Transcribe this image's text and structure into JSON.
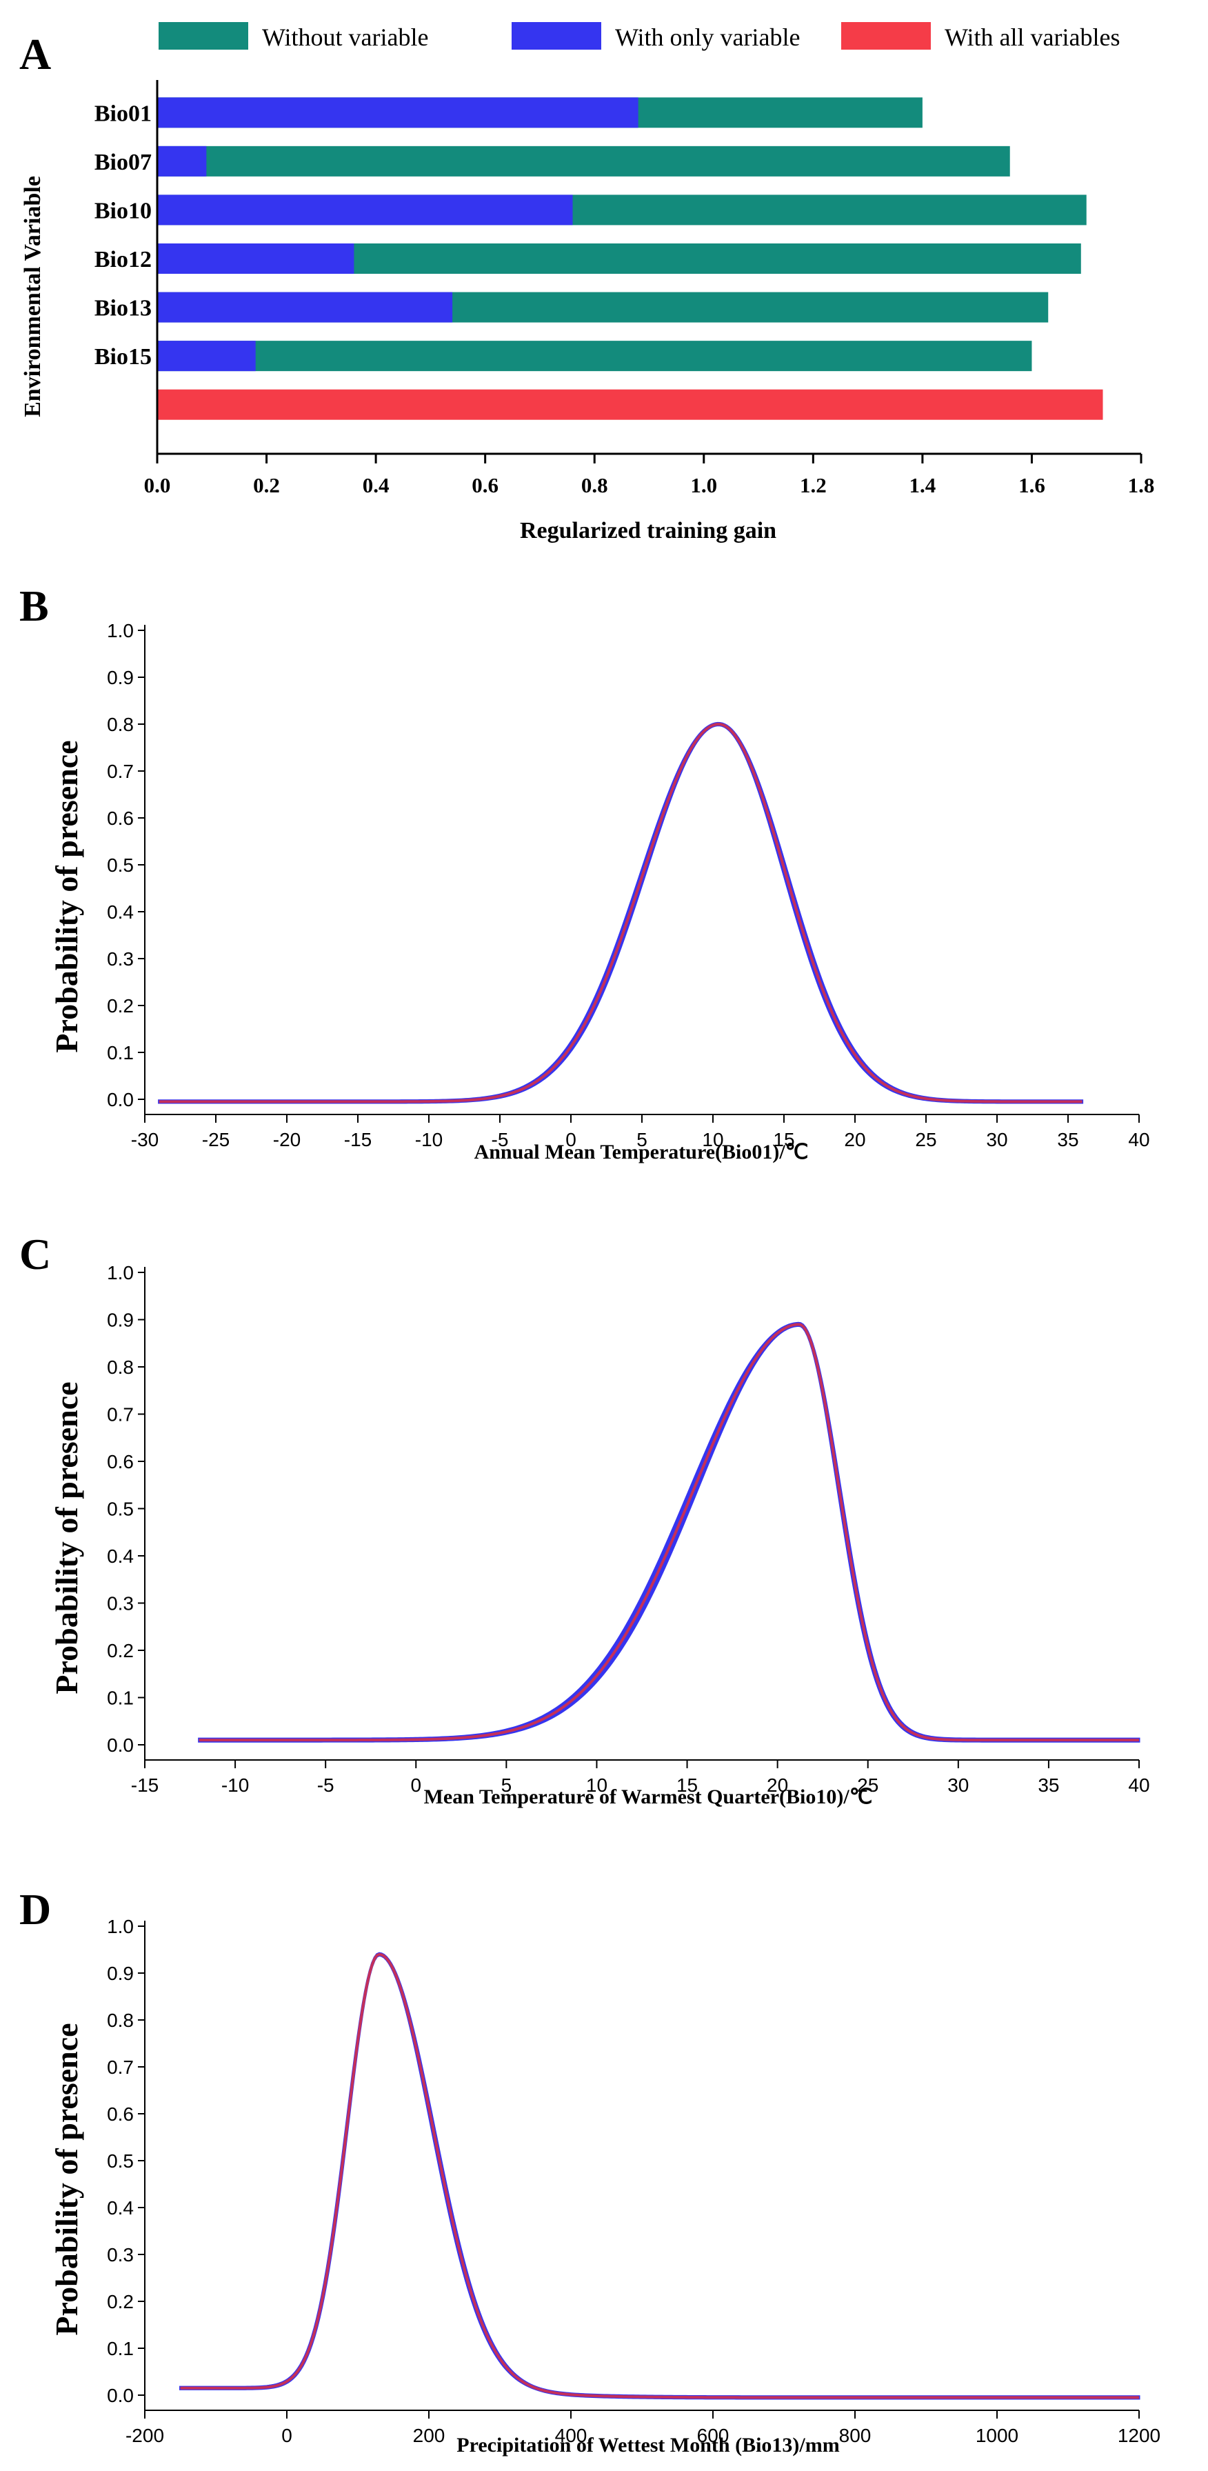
{
  "chart_data": [
    {
      "panel": "A",
      "type": "bar",
      "orientation": "horizontal",
      "categories": [
        "Bio01",
        "Bio07",
        "Bio10",
        "Bio12",
        "Bio13",
        "Bio15",
        ""
      ],
      "series": [
        {
          "name": "Without variable",
          "color": "#138b7c",
          "values": [
            1.4,
            1.56,
            1.7,
            1.69,
            1.63,
            1.6,
            null
          ]
        },
        {
          "name": "With only variable",
          "color": "#3535f0",
          "values": [
            0.88,
            0.09,
            0.76,
            0.36,
            0.54,
            0.18,
            null
          ]
        },
        {
          "name": "With all variables",
          "color": "#f53c48",
          "values": [
            null,
            null,
            null,
            null,
            null,
            null,
            1.73
          ]
        }
      ],
      "xlabel": "Regularized training gain",
      "ylabel": "Environmental Variable",
      "xlim": [
        0.0,
        1.8
      ],
      "xticks": [
        "0.0",
        "0.2",
        "0.4",
        "0.6",
        "0.8",
        "1.0",
        "1.2",
        "1.4",
        "1.6",
        "1.8"
      ],
      "legend": "top"
    },
    {
      "panel": "B",
      "type": "line",
      "xlabel": "Annual Mean Temperature(Bio01)/℃",
      "ylabel": "Probability of presence",
      "xlim": [
        -30,
        40
      ],
      "ylim": [
        0.0,
        1.0
      ],
      "xticks": [
        "-30",
        "-25",
        "-20",
        "-15",
        "-10",
        "-5",
        "0",
        "5",
        "10",
        "15",
        "20",
        "25",
        "30",
        "35",
        "40"
      ],
      "yticks": [
        "0.0",
        "0.1",
        "0.2",
        "0.3",
        "0.4",
        "0.5",
        "0.6",
        "0.7",
        "0.8",
        "0.9",
        "1.0"
      ],
      "curve": {
        "x_range": [
          -29,
          36
        ],
        "peak_x": 10.4,
        "peak_y": 0.8,
        "baseline": -0.005,
        "spread_left": 5.3,
        "spread_right": 4.7,
        "band_width": 0.012
      },
      "colors": {
        "band": "#3535f0",
        "mean": "#c4305a"
      }
    },
    {
      "panel": "C",
      "type": "line",
      "xlabel": "Mean Temperature of Warmest Quarter(Bio10)/℃",
      "ylabel": "Probability of presence",
      "xlim": [
        -15,
        40
      ],
      "ylim": [
        0.0,
        1.0
      ],
      "xticks": [
        "-15",
        "-10",
        "-5",
        "0",
        "5",
        "10",
        "15",
        "20",
        "25",
        "30",
        "35",
        "40"
      ],
      "yticks": [
        "0.0",
        "0.1",
        "0.2",
        "0.3",
        "0.4",
        "0.5",
        "0.6",
        "0.7",
        "0.8",
        "0.9",
        "1.0"
      ],
      "curve": {
        "x_range": [
          -12,
          40
        ],
        "peak_x": 21.2,
        "peak_y": 0.89,
        "baseline": 0.01,
        "spread_left": 5.8,
        "spread_right": 2.2,
        "band_width": 0.015
      },
      "colors": {
        "band": "#3535f0",
        "mean": "#c4305a"
      }
    },
    {
      "panel": "D",
      "type": "line",
      "xlabel": "Precipitation of Wettest Month (Bio13)/mm",
      "ylabel": "Probability of presence",
      "xlim": [
        -200,
        1200
      ],
      "ylim": [
        0.0,
        1.0
      ],
      "xticks": [
        "-200",
        "0",
        "200",
        "400",
        "600",
        "800",
        "1000",
        "1200"
      ],
      "yticks": [
        "0.0",
        "0.1",
        "0.2",
        "0.3",
        "0.4",
        "0.5",
        "0.6",
        "0.7",
        "0.8",
        "0.9",
        "1.0"
      ],
      "curve": {
        "x_range": [
          -150,
          1200
        ],
        "peak_x": 130,
        "peak_y": 0.94,
        "baseline": 0.015,
        "tail": -0.005,
        "spread_left": 45,
        "spread_right": 75,
        "band_width": 0.012
      },
      "colors": {
        "band": "#3535f0",
        "mean": "#c4305a"
      }
    }
  ]
}
